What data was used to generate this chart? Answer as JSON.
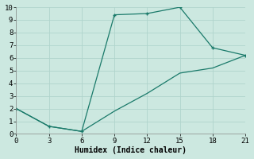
{
  "xlabel": "Humidex (Indice chaleur)",
  "background_color": "#cce8e0",
  "line_color": "#1a7a6a",
  "x_line1": [
    0,
    3,
    6,
    9,
    12,
    15,
    18,
    21
  ],
  "y_line1": [
    2,
    0.6,
    0.2,
    9.4,
    9.5,
    10,
    6.8,
    6.2
  ],
  "x_line2": [
    0,
    3,
    6,
    9,
    12,
    15,
    18,
    21
  ],
  "y_line2": [
    2,
    0.6,
    0.2,
    1.8,
    3.2,
    4.8,
    5.2,
    6.2
  ],
  "markers_x": [
    0,
    3,
    6,
    9,
    12,
    15,
    18,
    21
  ],
  "markers_y": [
    2,
    0.6,
    0.2,
    9.4,
    9.5,
    10,
    6.8,
    6.2
  ],
  "xlim": [
    0,
    21
  ],
  "ylim": [
    0,
    10
  ],
  "xticks": [
    0,
    3,
    6,
    9,
    12,
    15,
    18,
    21
  ],
  "yticks": [
    0,
    1,
    2,
    3,
    4,
    5,
    6,
    7,
    8,
    9,
    10
  ],
  "grid_color": "#b0d4cc",
  "markersize": 3.5,
  "linewidth": 0.9,
  "font_family": "monospace",
  "xlabel_fontsize": 7,
  "tick_fontsize": 6.5
}
